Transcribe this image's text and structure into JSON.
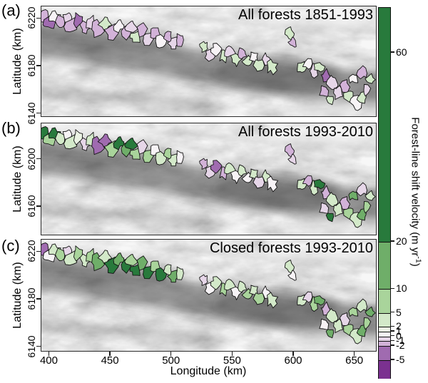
{
  "chart_data": {
    "type": "choropleth-map",
    "description": "Three-panel map figure of forest-line shift velocity for mountain districts over a grayscale hillshade",
    "xlabel": "Longitude (km)",
    "ylabel": "Latitude (km)",
    "xlim": [
      393.3,
      668.3
    ],
    "ylim": [
      6136,
      6230.5
    ],
    "xticks": [
      400,
      450,
      500,
      550,
      600,
      650
    ],
    "panels": [
      {
        "id": "a",
        "label": "(a)",
        "title": "All forests 1851-1993",
        "yticks": [
          6220,
          6180,
          6140
        ],
        "values": [
          -1.5,
          -4,
          0.5,
          -1.5,
          -0.5,
          -1.5,
          -3,
          -1.5,
          -0.5,
          -1.5,
          3,
          -1.5,
          0.5,
          -1.5,
          -0.5,
          3,
          -1.5,
          -0.5,
          -1.5,
          0.5,
          -1.5,
          -0.5,
          -1.5,
          3,
          -0.5,
          0.5,
          3,
          -0.5,
          3,
          -1.5,
          3,
          0.5,
          3,
          -0.5,
          3,
          3,
          -1.5,
          3,
          0.5,
          -0.5,
          3,
          -4,
          -0.5,
          -1.5,
          3,
          -0.5,
          -1.5,
          3,
          0.5,
          3,
          -0.5,
          3,
          -1.5,
          0.5
        ]
      },
      {
        "id": "b",
        "label": "(b)",
        "title": "All forests 1993-2010",
        "yticks": [
          6200,
          6160
        ],
        "values": [
          25,
          7,
          25,
          3,
          0.5,
          3,
          1.5,
          -0.5,
          3,
          -3.5,
          -3,
          7,
          25,
          15,
          25,
          7,
          -0.5,
          7,
          0.5,
          3,
          7,
          3,
          0.5,
          -1.5,
          -0.5,
          -3,
          -1.5,
          3,
          0.5,
          3,
          0.5,
          3,
          -0.5,
          3,
          0.5,
          -1.5,
          -0.5,
          3,
          -1.5,
          3,
          25,
          -1.5,
          3,
          -0.5,
          22,
          3,
          -1.5,
          7,
          3,
          15,
          7,
          3,
          -0.5,
          15
        ]
      },
      {
        "id": "c",
        "label": "(c)",
        "title": "Closed forests 1993-2010",
        "yticks": [
          6220,
          6180,
          6140
        ],
        "values": [
          -3,
          0.5,
          3,
          7,
          -0.5,
          3,
          7,
          3,
          7,
          15,
          3,
          25,
          15,
          25,
          7,
          25,
          15,
          25,
          7,
          25,
          3,
          15,
          3,
          -0.5,
          0.5,
          3,
          7,
          3,
          0.5,
          3,
          7,
          3,
          7,
          0.5,
          3,
          3,
          0.5,
          3,
          -0.5,
          7,
          15,
          -1.5,
          3,
          0.5,
          15,
          3,
          -0.5,
          7,
          3,
          15,
          7,
          15,
          3,
          7
        ]
      }
    ],
    "districts": [
      [
        395,
        6222,
        4.5
      ],
      [
        400,
        6216,
        4
      ],
      [
        404,
        6222,
        4
      ],
      [
        409,
        6218,
        4
      ],
      [
        414,
        6221,
        3.5
      ],
      [
        418,
        6214,
        4.5
      ],
      [
        424,
        6219,
        4.5
      ],
      [
        429,
        6213,
        4
      ],
      [
        434,
        6217,
        4
      ],
      [
        440,
        6211,
        5
      ],
      [
        446,
        6216,
        4.5
      ],
      [
        451,
        6209,
        5
      ],
      [
        457,
        6214,
        4
      ],
      [
        462,
        6208,
        4.5
      ],
      [
        467,
        6213,
        4
      ],
      [
        471,
        6205,
        4
      ],
      [
        476,
        6210,
        4
      ],
      [
        481,
        6203,
        4.5
      ],
      [
        487,
        6207,
        4
      ],
      [
        492,
        6201,
        4
      ],
      [
        497,
        6205,
        3.5
      ],
      [
        502,
        6199,
        4
      ],
      [
        507,
        6202,
        3.5
      ],
      [
        527,
        6196,
        3.5
      ],
      [
        532,
        6190,
        4
      ],
      [
        537,
        6194,
        3.5
      ],
      [
        543,
        6188,
        4
      ],
      [
        548,
        6192,
        4
      ],
      [
        553,
        6186,
        4
      ],
      [
        558,
        6190,
        3.5
      ],
      [
        563,
        6183,
        4
      ],
      [
        568,
        6187,
        3.5
      ],
      [
        573,
        6181,
        4
      ],
      [
        578,
        6185,
        3.5
      ],
      [
        583,
        6179,
        4
      ],
      [
        597,
        6208,
        3.5
      ],
      [
        600,
        6200,
        3
      ],
      [
        607,
        6178,
        4
      ],
      [
        612,
        6182,
        3.5
      ],
      [
        617,
        6175,
        4
      ],
      [
        622,
        6179,
        3.5
      ],
      [
        627,
        6171,
        4
      ],
      [
        632,
        6165,
        4
      ],
      [
        626,
        6158,
        3.5
      ],
      [
        631,
        6151,
        3.5
      ],
      [
        637,
        6157,
        4
      ],
      [
        642,
        6162,
        4
      ],
      [
        647,
        6155,
        4
      ],
      [
        652,
        6148,
        4
      ],
      [
        657,
        6153,
        4
      ],
      [
        661,
        6159,
        3.5
      ],
      [
        664,
        6168,
        3.5
      ],
      [
        657,
        6174,
        3.5
      ],
      [
        650,
        6169,
        3.5
      ]
    ],
    "colorbar": {
      "label_main": "Forest-line shift velocity (m yr",
      "label_sup": "-1",
      "label_end": ")",
      "vmax": 69.5,
      "vmin": -8.8,
      "tick_values": [
        60,
        20,
        10,
        5,
        2,
        1,
        0,
        -1,
        -2,
        -5
      ],
      "breaks_desc": [
        20,
        10,
        5,
        2,
        1,
        0,
        -1,
        -2,
        -5
      ],
      "bin_colors_high_to_low": [
        "#287a3c",
        "#6fae69",
        "#a9d49b",
        "#d3e9c9",
        "#ebf3e4",
        "#f7f3f6",
        "#e6d6e8",
        "#d2b2d8",
        "#a06bb0",
        "#7b3190"
      ]
    }
  }
}
